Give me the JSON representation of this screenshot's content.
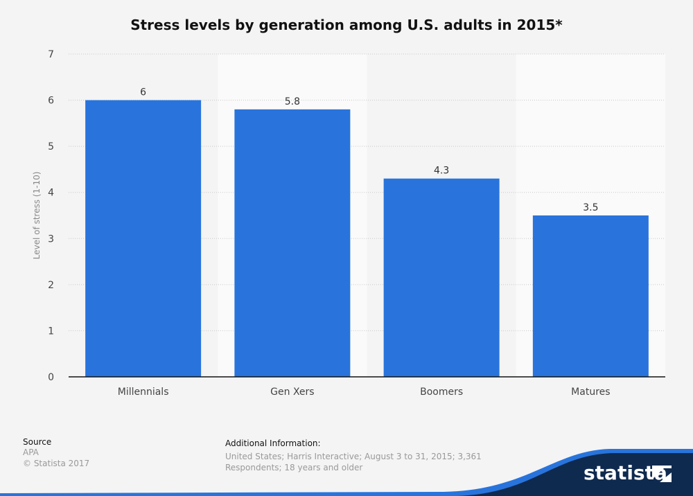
{
  "chart_data": {
    "type": "bar",
    "title": "Stress levels by generation among U.S. adults in 2015*",
    "categories": [
      "Millennials",
      "Gen Xers",
      "Boomers",
      "Matures"
    ],
    "values": [
      6,
      5.8,
      4.3,
      3.5
    ],
    "data_labels": [
      "6",
      "5.8",
      "4.3",
      "3.5"
    ],
    "xlabel": "",
    "ylabel": "Level of stress (1-10)",
    "ylim": [
      0,
      7
    ],
    "yticks": [
      "0",
      "1",
      "2",
      "3",
      "4",
      "5",
      "6",
      "7"
    ],
    "grid": true,
    "bar_color": "#2874dc"
  },
  "footer": {
    "source_heading": "Source",
    "source_name": "APA",
    "copyright": "© Statista 2017",
    "info_heading": "Additional Information:",
    "info_line1": "United States; Harris Interactive; August 3 to 31, 2015; 3,361",
    "info_line2": "Respondents; 18 years and older"
  },
  "brand": {
    "name": "statista",
    "icon": "statista-logo-icon",
    "color": "#0f2a4f",
    "accent": "#2874dc"
  }
}
